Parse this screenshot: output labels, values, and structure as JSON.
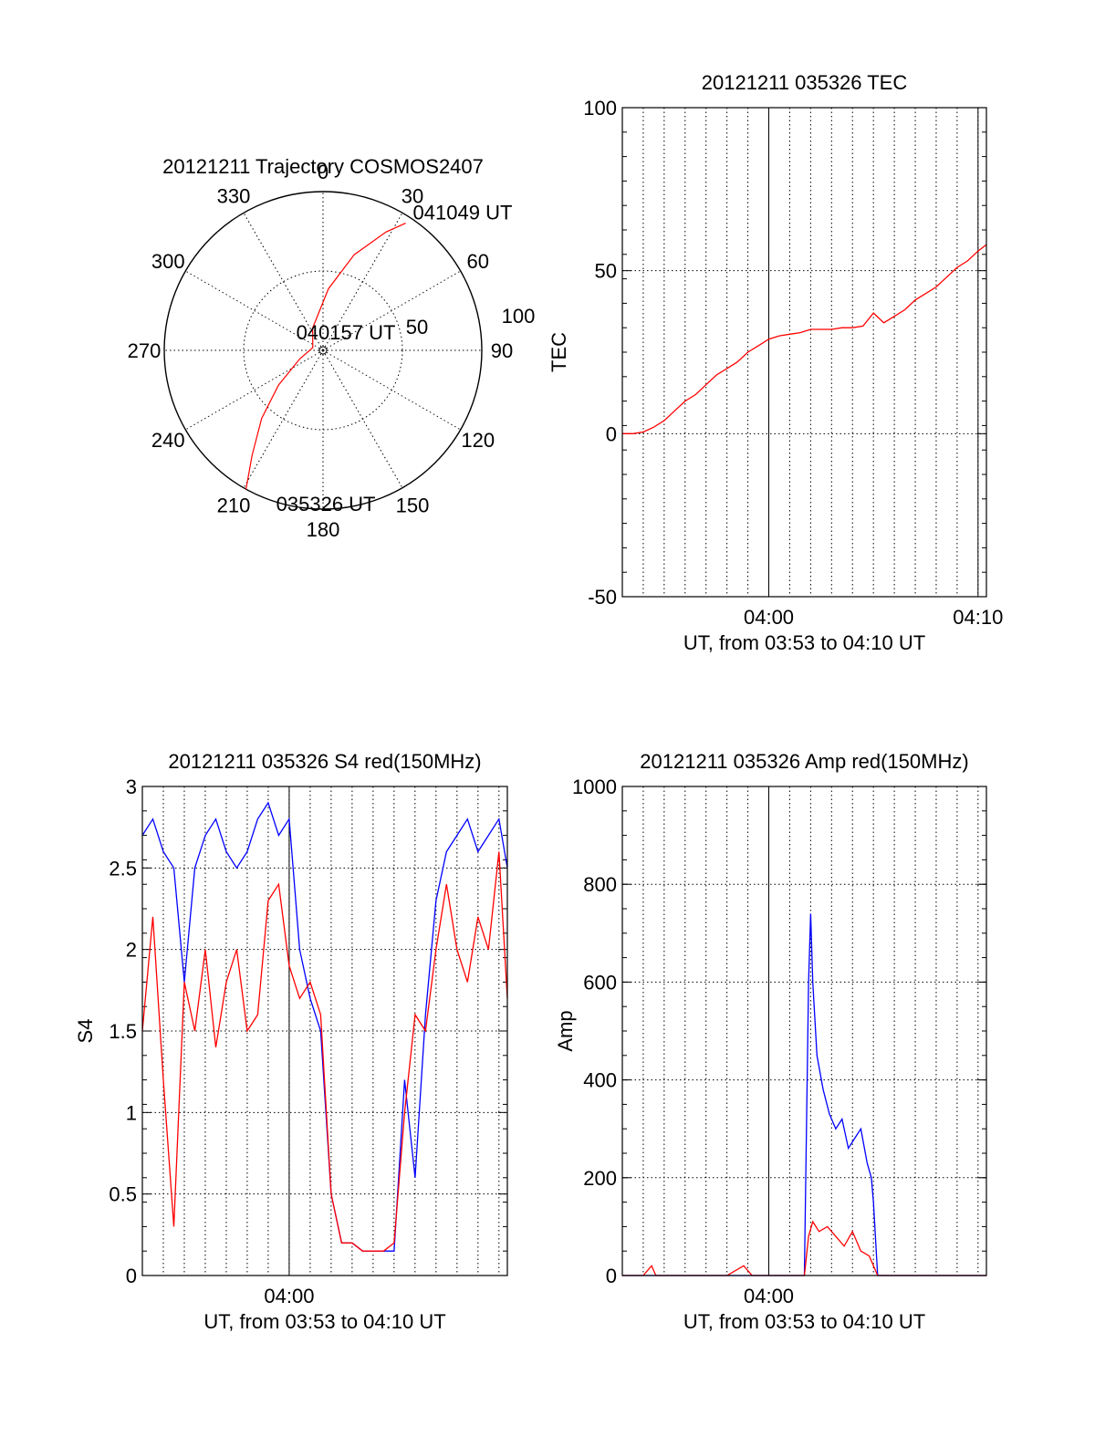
{
  "chart_data": [
    {
      "type": "polar",
      "title": "20121211 Trajectory COSMOS2407",
      "azimuth_labels": [
        "0",
        "30",
        "60",
        "90",
        "120",
        "150",
        "180",
        "210",
        "240",
        "270",
        "300",
        "330"
      ],
      "radial_labels": [
        "50",
        "100"
      ],
      "track_color": "#ff0000",
      "track": [
        {
          "az": 209,
          "el": 0
        },
        {
          "az": 214,
          "el": 18
        },
        {
          "az": 222,
          "el": 38
        },
        {
          "az": 232,
          "el": 58
        },
        {
          "az": 250,
          "el": 76
        },
        {
          "az": 285,
          "el": 84
        },
        {
          "az": 335,
          "el": 76
        },
        {
          "az": 5,
          "el": 55
        },
        {
          "az": 18,
          "el": 33
        },
        {
          "az": 28,
          "el": 14
        },
        {
          "az": 33,
          "el": 4
        }
      ],
      "annotations": [
        {
          "text": "041049 UT",
          "az": 33,
          "el": 4
        },
        {
          "text": "040157 UT",
          "az": 0,
          "el": 90
        },
        {
          "text": "035326 UT",
          "az": 209,
          "el": 0
        }
      ]
    },
    {
      "type": "line",
      "title": "20121211 035326 TEC",
      "xlabel": "UT, from 03:53 to 04:10 UT",
      "ylabel": "TEC",
      "xlim_min": [
        0,
        17.4
      ],
      "ylim": [
        -50,
        100
      ],
      "yticks": [
        "100",
        "50",
        "0",
        "-50"
      ],
      "xtick_labels": [
        {
          "label": "04:00",
          "min": 7
        },
        {
          "label": "04:10",
          "min": 17
        }
      ],
      "grid": true,
      "series": [
        {
          "color": "#ff0000",
          "x_min": [
            0,
            0.5,
            1.0,
            1.5,
            2.0,
            2.5,
            3.0,
            3.5,
            4.0,
            4.5,
            5.0,
            5.5,
            6.0,
            6.5,
            7.0,
            7.5,
            8.0,
            8.5,
            9.0,
            9.5,
            10.0,
            10.5,
            11.0,
            11.5,
            12.0,
            12.5,
            13.0,
            13.5,
            14.0,
            14.5,
            15.0,
            15.5,
            16.0,
            16.5,
            17.0,
            17.4
          ],
          "values": [
            0,
            0,
            0.5,
            2,
            4,
            7,
            10,
            12,
            15,
            18,
            20,
            22,
            25,
            27,
            29,
            30,
            30.5,
            31,
            32,
            32,
            32,
            32.5,
            32.5,
            33,
            37,
            34,
            36,
            38,
            41,
            43,
            45,
            48,
            51,
            53,
            56,
            58
          ]
        }
      ]
    },
    {
      "type": "line",
      "title": "20121211 035326 S4 red(150MHz)",
      "xlabel": "UT, from 03:53 to 04:10 UT",
      "ylabel": "S4",
      "xlim_min": [
        0,
        17.4
      ],
      "ylim": [
        0,
        3
      ],
      "yticks": [
        "3",
        "2.5",
        "2",
        "1.5",
        "1",
        "0.5",
        "0"
      ],
      "xtick_labels": [
        {
          "label": "04:00",
          "min": 7
        }
      ],
      "grid": true,
      "series": [
        {
          "color": "#0000ff",
          "x_min": [
            0,
            0.5,
            1.0,
            1.5,
            2.0,
            2.5,
            3.0,
            3.5,
            4.0,
            4.5,
            5.0,
            5.5,
            6.0,
            6.5,
            7.0,
            7.5,
            8.0,
            8.5,
            9.0,
            9.5,
            10.0,
            10.5,
            11.0,
            11.5,
            12.0,
            12.5,
            13.0,
            13.5,
            14.0,
            14.5,
            15.0,
            15.5,
            16.0,
            16.5,
            17.0,
            17.4
          ],
          "values": [
            2.7,
            2.8,
            2.6,
            2.5,
            1.8,
            2.5,
            2.7,
            2.8,
            2.6,
            2.5,
            2.6,
            2.8,
            2.9,
            2.7,
            2.8,
            2.0,
            1.7,
            1.5,
            0.5,
            0.2,
            0.2,
            0.15,
            0.15,
            0.15,
            0.15,
            1.2,
            0.6,
            1.6,
            2.3,
            2.6,
            2.7,
            2.8,
            2.6,
            2.7,
            2.8,
            2.5
          ]
        },
        {
          "color": "#ff0000",
          "x_min": [
            0,
            0.5,
            1.0,
            1.5,
            2.0,
            2.5,
            3.0,
            3.5,
            4.0,
            4.5,
            5.0,
            5.5,
            6.0,
            6.5,
            7.0,
            7.5,
            8.0,
            8.5,
            9.0,
            9.5,
            10.0,
            10.5,
            11.0,
            11.5,
            12.0,
            12.5,
            13.0,
            13.5,
            14.0,
            14.5,
            15.0,
            15.5,
            16.0,
            16.5,
            17.0,
            17.4
          ],
          "values": [
            1.5,
            2.2,
            1.2,
            0.3,
            1.8,
            1.5,
            2.0,
            1.4,
            1.8,
            2.0,
            1.5,
            1.6,
            2.3,
            2.4,
            1.9,
            1.7,
            1.8,
            1.6,
            0.5,
            0.2,
            0.2,
            0.15,
            0.15,
            0.15,
            0.2,
            1.0,
            1.6,
            1.5,
            2.0,
            2.4,
            2.0,
            1.8,
            2.2,
            2.0,
            2.6,
            1.7
          ]
        }
      ]
    },
    {
      "type": "line",
      "title": "20121211 035326 Amp red(150MHz)",
      "xlabel": "UT, from 03:53 to 04:10 UT",
      "ylabel": "Amp",
      "xlim_min": [
        0,
        17.4
      ],
      "ylim": [
        0,
        1000
      ],
      "yticks": [
        "1000",
        "800",
        "600",
        "400",
        "200",
        "0"
      ],
      "xtick_labels": [
        {
          "label": "04:00",
          "min": 7
        }
      ],
      "grid": true,
      "series": [
        {
          "color": "#0000ff",
          "x_min": [
            0,
            1.0,
            2.0,
            3.0,
            4.0,
            5.0,
            6.0,
            7.0,
            8.0,
            8.7,
            8.9,
            9.0,
            9.1,
            9.3,
            9.6,
            9.9,
            10.2,
            10.5,
            10.8,
            11.1,
            11.4,
            11.7,
            11.9,
            12.0,
            12.2,
            13.0,
            14.0,
            15.0,
            16.0,
            17.4
          ],
          "values": [
            0,
            0,
            0,
            0,
            0,
            0,
            0,
            0,
            0,
            0,
            600,
            740,
            600,
            450,
            380,
            330,
            300,
            320,
            260,
            280,
            300,
            230,
            200,
            150,
            0,
            0,
            0,
            0,
            0,
            0
          ]
        },
        {
          "color": "#ff0000",
          "x_min": [
            0,
            1.0,
            1.4,
            1.6,
            2.0,
            5.0,
            5.8,
            6.2,
            7.0,
            8.0,
            8.7,
            8.9,
            9.1,
            9.4,
            9.8,
            10.2,
            10.6,
            11.0,
            11.4,
            11.8,
            12.0,
            12.2,
            13.0,
            17.4
          ],
          "values": [
            0,
            0,
            20,
            0,
            0,
            0,
            20,
            0,
            0,
            0,
            0,
            80,
            110,
            90,
            100,
            80,
            60,
            90,
            50,
            40,
            20,
            0,
            0,
            0
          ]
        }
      ]
    }
  ]
}
